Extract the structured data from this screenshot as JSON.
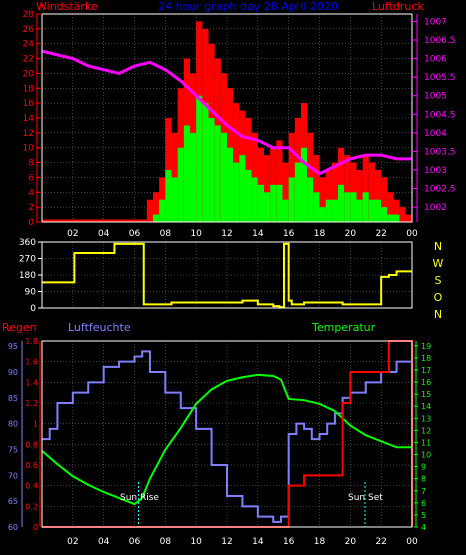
{
  "header": {
    "left_title": "Windstärke",
    "center_title": "24 hour graph day  28 April 2020",
    "right_title": "Luftdruck"
  },
  "x_ticks": [
    "02",
    "04",
    "06",
    "08",
    "10",
    "12",
    "14",
    "16",
    "18",
    "20",
    "22",
    "00"
  ],
  "colors": {
    "background": "#000000",
    "grid": "#808080",
    "wind_mean": "#00ff00",
    "wind_gust": "#ff0000",
    "wind_small": "#000000",
    "pressure": "#ff00ff",
    "direction": "#ffff00",
    "rain": "#ff0000",
    "humidity": "#8080ff",
    "temperature": "#00ff00",
    "left_axis_1": "#ff0000",
    "right_axis_1": "#ff00ff",
    "panel3_left_rain": "#ff0000",
    "panel3_left_hum": "#8080ff",
    "panel3_right": "#00ff00"
  },
  "labels": {
    "regen": "Regen",
    "luftfeuchte": "Luftfeuchte",
    "temperatur": "Temperatur",
    "sunrise": "Sun Rise",
    "sunset": "Sun Set",
    "compass": [
      "N",
      "W",
      "S",
      "O",
      "N"
    ]
  },
  "chart_data": [
    {
      "type": "bar",
      "title": "",
      "ylabel": "Windstärke",
      "ylabel_right": "Luftdruck",
      "xlim": [
        0,
        24
      ],
      "ylim": [
        0,
        28
      ],
      "y_ticks": [
        0,
        2,
        4,
        6,
        8,
        10,
        12,
        14,
        16,
        18,
        20,
        22,
        24,
        26,
        28
      ],
      "y2lim": [
        1001.6,
        1007.2
      ],
      "y2_ticks": [
        "1002",
        "1002.5",
        "1003",
        "1003.5",
        "1004",
        "1004.5",
        "1005",
        "1005.5",
        "1006",
        "1006.5",
        "1007"
      ],
      "grid": true,
      "series": [
        {
          "kind": "bars",
          "x": [
            6.8,
            7.2,
            7.6,
            8.0,
            8.4,
            8.8,
            9.2,
            9.6,
            10.0,
            10.4,
            10.8,
            11.2,
            11.6,
            12.0,
            12.4,
            12.8,
            13.2,
            13.6,
            14.0,
            14.4,
            14.8,
            15.2,
            15.6,
            16.0,
            16.4,
            16.8,
            17.2,
            17.6,
            18.0,
            18.4,
            18.8,
            19.2,
            19.6,
            20.0,
            20.4,
            20.8,
            21.2,
            21.6,
            22.0,
            22.4,
            22.8,
            23.2,
            23.6
          ],
          "gust": [
            3,
            4,
            6,
            14,
            12,
            18,
            22,
            20,
            27,
            26,
            24,
            22,
            20,
            18,
            16,
            15,
            14,
            12,
            10,
            9,
            10,
            11,
            8,
            12,
            14,
            16,
            12,
            9,
            6,
            7,
            8,
            10,
            9,
            8,
            7,
            9,
            8,
            7,
            6,
            4,
            3,
            2,
            1
          ],
          "mean": [
            0,
            1,
            3,
            7,
            6,
            10,
            13,
            12,
            17,
            16,
            14,
            13,
            12,
            10,
            8,
            9,
            7,
            6,
            5,
            4,
            5,
            5,
            3,
            6,
            8,
            10,
            6,
            4,
            2,
            3,
            3,
            5,
            4,
            4,
            3,
            4,
            3,
            3,
            2,
            1,
            1,
            0,
            0
          ]
        },
        {
          "kind": "line",
          "x": [
            0,
            1,
            2,
            3,
            4,
            5,
            6,
            7,
            8,
            9,
            10,
            11,
            12,
            13,
            14,
            15,
            16,
            17,
            18,
            19,
            20,
            21,
            22,
            23,
            24
          ],
          "values": [
            1006.2,
            1006.1,
            1006.0,
            1005.8,
            1005.7,
            1005.6,
            1005.8,
            1005.9,
            1005.7,
            1005.4,
            1005.0,
            1004.6,
            1004.2,
            1003.9,
            1003.8,
            1003.6,
            1003.6,
            1003.2,
            1002.9,
            1003.1,
            1003.3,
            1003.4,
            1003.4,
            1003.3,
            1003.3
          ]
        }
      ]
    },
    {
      "type": "line",
      "title": "",
      "ylabel": "",
      "xlim": [
        0,
        24
      ],
      "ylim": [
        0,
        360
      ],
      "y_ticks": [
        0,
        90,
        180,
        270,
        360
      ],
      "grid": true,
      "series": [
        {
          "kind": "step",
          "x": [
            0,
            1.6,
            2.1,
            4.2,
            4.7,
            6.4,
            6.6,
            7.0,
            8.4,
            13.0,
            14.0,
            15.0,
            15.4,
            15.7,
            15.8,
            16.0,
            16.2,
            17.0,
            18.0,
            19.5,
            20.0,
            22.0,
            22.5,
            23.0,
            24
          ],
          "values": [
            140,
            140,
            300,
            300,
            350,
            350,
            20,
            20,
            30,
            40,
            20,
            10,
            5,
            350,
            350,
            40,
            20,
            30,
            30,
            20,
            20,
            170,
            180,
            200,
            200
          ]
        }
      ]
    },
    {
      "type": "line",
      "title": "",
      "xlim": [
        0,
        24
      ],
      "rain_ylim": [
        0,
        1.8
      ],
      "rain_ticks": [
        "0",
        "0.2",
        "0.4",
        "0.6",
        "0.8",
        "1",
        "1.2",
        "1.4",
        "1.6",
        "1.8"
      ],
      "humidity_ylim": [
        60,
        96
      ],
      "humidity_ticks": [
        "60",
        "65",
        "70",
        "75",
        "80",
        "85",
        "90",
        "95"
      ],
      "temp_ylim": [
        4,
        19.4
      ],
      "temp_ticks": [
        "4",
        "5",
        "6",
        "7",
        "8",
        "9",
        "10",
        "11",
        "12",
        "13",
        "14",
        "15",
        "16",
        "17",
        "18",
        "19"
      ],
      "grid": true,
      "series": [
        {
          "name": "Regen",
          "kind": "step",
          "x": [
            0,
            15.8,
            16.0,
            17.0,
            19.2,
            19.5,
            20.0,
            21.0,
            22.5,
            23.0,
            23.8,
            24
          ],
          "values": [
            0,
            0,
            0.4,
            0.5,
            0.5,
            1.2,
            1.5,
            1.5,
            1.8,
            1.8,
            1.8,
            0
          ]
        },
        {
          "name": "Luftfeuchte",
          "kind": "step",
          "x": [
            0,
            0.5,
            1,
            2,
            3,
            4,
            5,
            6,
            6.5,
            7,
            8,
            9,
            10,
            11,
            12,
            13,
            14,
            15,
            15.5,
            16,
            16.5,
            17,
            17.5,
            18,
            18.5,
            19,
            19.5,
            20,
            21,
            22,
            23,
            24
          ],
          "values": [
            77,
            79,
            84,
            86,
            88,
            91,
            92,
            93,
            94,
            90,
            86,
            83,
            79,
            72,
            66,
            64,
            62,
            61,
            62,
            78,
            80,
            79,
            77,
            78,
            80,
            82,
            85,
            86,
            88,
            90,
            92,
            93
          ]
        },
        {
          "name": "Temperatur",
          "kind": "line",
          "x": [
            0,
            1,
            2,
            3,
            4,
            5,
            6,
            6.5,
            7,
            8,
            9,
            10,
            11,
            12,
            13,
            14,
            15,
            15.5,
            16,
            17,
            18,
            19,
            20,
            21,
            22,
            23,
            24
          ],
          "values": [
            10.3,
            9.2,
            8.2,
            7.5,
            6.9,
            6.4,
            5.9,
            6.4,
            8.0,
            10.4,
            12.2,
            14.2,
            15.4,
            16.1,
            16.4,
            16.6,
            16.5,
            16.2,
            14.6,
            14.5,
            14.2,
            13.6,
            12.4,
            11.6,
            11.1,
            10.6,
            10.6
          ]
        }
      ]
    }
  ]
}
